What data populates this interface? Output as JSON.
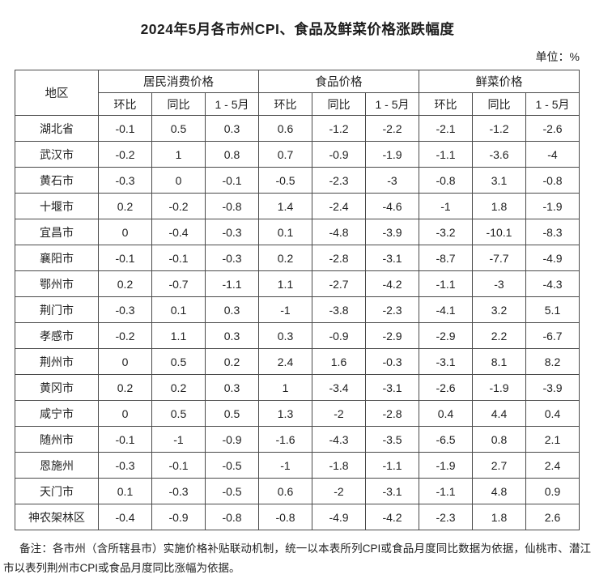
{
  "title": "2024年5月各市州CPI、食品及鲜菜价格涨跌幅度",
  "unit_label": "单位：%",
  "table": {
    "region_header": "地区",
    "groups": [
      {
        "label": "居民消费价格",
        "sub": [
          "环比",
          "同比",
          "1 - 5月"
        ]
      },
      {
        "label": "食品价格",
        "sub": [
          "环比",
          "同比",
          "1 - 5月"
        ]
      },
      {
        "label": "鲜菜价格",
        "sub": [
          "环比",
          "同比",
          "1 - 5月"
        ]
      }
    ],
    "rows": [
      {
        "region": "湖北省",
        "values": [
          "-0.1",
          "0.5",
          "0.3",
          "0.6",
          "-1.2",
          "-2.2",
          "-2.1",
          "-1.2",
          "-2.6"
        ]
      },
      {
        "region": "武汉市",
        "values": [
          "-0.2",
          "1",
          "0.8",
          "0.7",
          "-0.9",
          "-1.9",
          "-1.1",
          "-3.6",
          "-4"
        ]
      },
      {
        "region": "黄石市",
        "values": [
          "-0.3",
          "0",
          "-0.1",
          "-0.5",
          "-2.3",
          "-3",
          "-0.8",
          "3.1",
          "-0.8"
        ]
      },
      {
        "region": "十堰市",
        "values": [
          "0.2",
          "-0.2",
          "-0.8",
          "1.4",
          "-2.4",
          "-4.6",
          "-1",
          "1.8",
          "-1.9"
        ]
      },
      {
        "region": "宜昌市",
        "values": [
          "0",
          "-0.4",
          "-0.3",
          "0.1",
          "-4.8",
          "-3.9",
          "-3.2",
          "-10.1",
          "-8.3"
        ]
      },
      {
        "region": "襄阳市",
        "values": [
          "-0.1",
          "-0.1",
          "-0.3",
          "0.2",
          "-2.8",
          "-3.1",
          "-8.7",
          "-7.7",
          "-4.9"
        ]
      },
      {
        "region": "鄂州市",
        "values": [
          "0.2",
          "-0.7",
          "-1.1",
          "1.1",
          "-2.7",
          "-4.2",
          "-1.1",
          "-3",
          "-4.3"
        ]
      },
      {
        "region": "荆门市",
        "values": [
          "-0.3",
          "0.1",
          "0.3",
          "-1",
          "-3.8",
          "-2.3",
          "-4.1",
          "3.2",
          "5.1"
        ]
      },
      {
        "region": "孝感市",
        "values": [
          "-0.2",
          "1.1",
          "0.3",
          "0.3",
          "-0.9",
          "-2.9",
          "-2.9",
          "2.2",
          "-6.7"
        ]
      },
      {
        "region": "荆州市",
        "values": [
          "0",
          "0.5",
          "0.2",
          "2.4",
          "1.6",
          "-0.3",
          "-3.1",
          "8.1",
          "8.2"
        ]
      },
      {
        "region": "黄冈市",
        "values": [
          "0.2",
          "0.2",
          "0.3",
          "1",
          "-3.4",
          "-3.1",
          "-2.6",
          "-1.9",
          "-3.9"
        ]
      },
      {
        "region": "咸宁市",
        "values": [
          "0",
          "0.5",
          "0.5",
          "1.3",
          "-2",
          "-2.8",
          "0.4",
          "4.4",
          "0.4"
        ]
      },
      {
        "region": "随州市",
        "values": [
          "-0.1",
          "-1",
          "-0.9",
          "-1.6",
          "-4.3",
          "-3.5",
          "-6.5",
          "0.8",
          "2.1"
        ]
      },
      {
        "region": "恩施州",
        "values": [
          "-0.3",
          "-0.1",
          "-0.5",
          "-1",
          "-1.8",
          "-1.1",
          "-1.9",
          "2.7",
          "2.4"
        ]
      },
      {
        "region": "天门市",
        "values": [
          "0.1",
          "-0.3",
          "-0.5",
          "0.6",
          "-2",
          "-3.1",
          "-1.1",
          "4.8",
          "0.9"
        ]
      },
      {
        "region": "神农架林区",
        "values": [
          "-0.4",
          "-0.9",
          "-0.8",
          "-0.8",
          "-4.9",
          "-4.2",
          "-2.3",
          "1.8",
          "2.6"
        ]
      }
    ]
  },
  "footnote": "备注：各市州（含所辖县市）实施价格补贴联动机制，统一以本表所列CPI或食品月度同比数据为依据，仙桃市、潜江市以表列荆州市CPI或食品月度同比涨幅为依据。",
  "colors": {
    "text": "#212121",
    "border": "#4a4a4a",
    "background": "#ffffff"
  }
}
